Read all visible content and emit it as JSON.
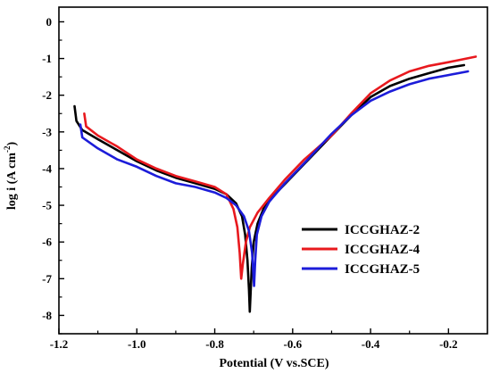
{
  "chart_data": {
    "type": "line",
    "xlabel": "Potential (V vs.SCE)",
    "ylabel_main": "log i (A cm",
    "ylabel_sup": "-2",
    "ylabel_close": ")",
    "xlim": [
      -1.2,
      -0.1
    ],
    "ylim": [
      -8.5,
      0.4
    ],
    "x_ticks": [
      -1.2,
      -1.0,
      -0.8,
      -0.6,
      -0.4,
      -0.2
    ],
    "x_tick_labels": [
      "-1.2",
      "-1.0",
      "-0.8",
      "-0.6",
      "-0.4",
      "-0.2"
    ],
    "y_ticks": [
      0,
      -1,
      -2,
      -3,
      -4,
      -5,
      -6,
      -7,
      -8
    ],
    "y_tick_labels": [
      "0",
      "-1",
      "-2",
      "-3",
      "-4",
      "-5",
      "-6",
      "-7",
      "-8"
    ],
    "legend_position": "center-right",
    "series": [
      {
        "name": "ICCGHAZ-2",
        "color": "#000000",
        "points": [
          [
            -1.16,
            -2.3
          ],
          [
            -1.155,
            -2.7
          ],
          [
            -1.14,
            -2.95
          ],
          [
            -1.1,
            -3.2
          ],
          [
            -1.05,
            -3.5
          ],
          [
            -1.0,
            -3.8
          ],
          [
            -0.95,
            -4.05
          ],
          [
            -0.9,
            -4.25
          ],
          [
            -0.85,
            -4.4
          ],
          [
            -0.8,
            -4.55
          ],
          [
            -0.77,
            -4.7
          ],
          [
            -0.745,
            -4.95
          ],
          [
            -0.73,
            -5.3
          ],
          [
            -0.722,
            -5.8
          ],
          [
            -0.716,
            -6.5
          ],
          [
            -0.712,
            -7.3
          ],
          [
            -0.71,
            -7.9
          ],
          [
            -0.708,
            -7.4
          ],
          [
            -0.705,
            -6.7
          ],
          [
            -0.7,
            -6.0
          ],
          [
            -0.69,
            -5.5
          ],
          [
            -0.675,
            -5.1
          ],
          [
            -0.65,
            -4.75
          ],
          [
            -0.6,
            -4.2
          ],
          [
            -0.55,
            -3.65
          ],
          [
            -0.5,
            -3.1
          ],
          [
            -0.45,
            -2.55
          ],
          [
            -0.4,
            -2.05
          ],
          [
            -0.35,
            -1.75
          ],
          [
            -0.3,
            -1.55
          ],
          [
            -0.25,
            -1.4
          ],
          [
            -0.2,
            -1.25
          ],
          [
            -0.16,
            -1.18
          ]
        ]
      },
      {
        "name": "ICCGHAZ-4",
        "color": "#e8191e",
        "points": [
          [
            -1.135,
            -2.5
          ],
          [
            -1.13,
            -2.85
          ],
          [
            -1.1,
            -3.1
          ],
          [
            -1.05,
            -3.4
          ],
          [
            -1.0,
            -3.75
          ],
          [
            -0.95,
            -4.0
          ],
          [
            -0.9,
            -4.2
          ],
          [
            -0.85,
            -4.35
          ],
          [
            -0.8,
            -4.5
          ],
          [
            -0.77,
            -4.7
          ],
          [
            -0.752,
            -5.1
          ],
          [
            -0.742,
            -5.6
          ],
          [
            -0.736,
            -6.3
          ],
          [
            -0.732,
            -7.0
          ],
          [
            -0.728,
            -6.6
          ],
          [
            -0.72,
            -6.0
          ],
          [
            -0.71,
            -5.6
          ],
          [
            -0.69,
            -5.2
          ],
          [
            -0.66,
            -4.8
          ],
          [
            -0.62,
            -4.3
          ],
          [
            -0.57,
            -3.75
          ],
          [
            -0.5,
            -3.1
          ],
          [
            -0.45,
            -2.5
          ],
          [
            -0.4,
            -1.95
          ],
          [
            -0.35,
            -1.6
          ],
          [
            -0.3,
            -1.35
          ],
          [
            -0.25,
            -1.2
          ],
          [
            -0.2,
            -1.1
          ],
          [
            -0.13,
            -0.95
          ]
        ]
      },
      {
        "name": "ICCGHAZ-5",
        "color": "#1c1cd9",
        "points": [
          [
            -1.145,
            -2.8
          ],
          [
            -1.14,
            -3.15
          ],
          [
            -1.1,
            -3.45
          ],
          [
            -1.05,
            -3.75
          ],
          [
            -1.0,
            -3.95
          ],
          [
            -0.95,
            -4.2
          ],
          [
            -0.9,
            -4.4
          ],
          [
            -0.85,
            -4.5
          ],
          [
            -0.8,
            -4.65
          ],
          [
            -0.77,
            -4.8
          ],
          [
            -0.745,
            -5.0
          ],
          [
            -0.725,
            -5.3
          ],
          [
            -0.712,
            -5.7
          ],
          [
            -0.704,
            -6.3
          ],
          [
            -0.699,
            -7.2
          ],
          [
            -0.696,
            -6.5
          ],
          [
            -0.692,
            -5.8
          ],
          [
            -0.68,
            -5.3
          ],
          [
            -0.66,
            -4.9
          ],
          [
            -0.62,
            -4.4
          ],
          [
            -0.57,
            -3.85
          ],
          [
            -0.5,
            -3.05
          ],
          [
            -0.45,
            -2.55
          ],
          [
            -0.4,
            -2.15
          ],
          [
            -0.35,
            -1.9
          ],
          [
            -0.3,
            -1.7
          ],
          [
            -0.25,
            -1.55
          ],
          [
            -0.2,
            -1.45
          ],
          [
            -0.15,
            -1.35
          ]
        ]
      }
    ]
  }
}
